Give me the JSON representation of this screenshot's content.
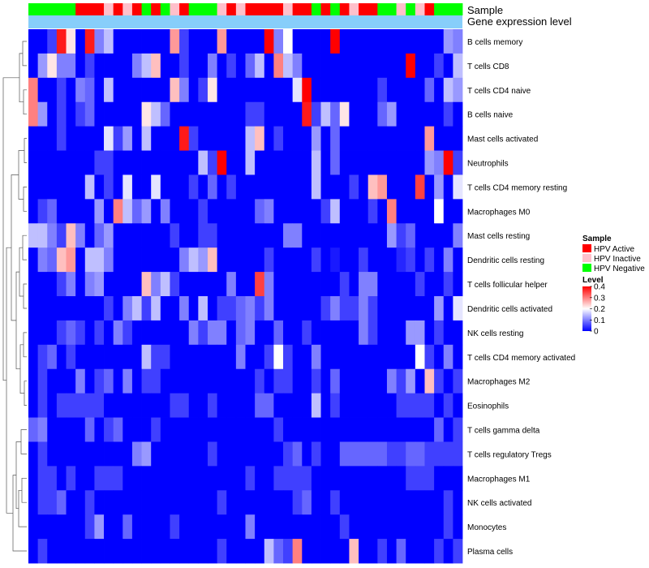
{
  "chart_data": {
    "type": "heatmap",
    "annotation_tracks": [
      "Sample",
      "Gene expression level"
    ],
    "legend": {
      "sample_title": "Sample",
      "sample_entries": [
        {
          "label": "HPV Active",
          "color": "#ff0000"
        },
        {
          "label": "HPV Inactive",
          "color": "#ffc0cb"
        },
        {
          "label": "HPV Negative",
          "color": "#00ff00"
        }
      ],
      "level_title": "Level",
      "level_ticks": [
        "0.4",
        "0.3",
        "0.2",
        "0.1",
        "0"
      ],
      "level_range": [
        0,
        0.4
      ],
      "color_stops": [
        "#0000ff",
        "#ffffff",
        "#ff0000"
      ]
    },
    "gene_expression_color": "#87cefa",
    "samples": [
      "G",
      "G",
      "G",
      "G",
      "G",
      "A",
      "A",
      "A",
      "I",
      "A",
      "I",
      "A",
      "G",
      "A",
      "G",
      "I",
      "A",
      "G",
      "G",
      "G",
      "I",
      "A",
      "I",
      "A",
      "A",
      "A",
      "A",
      "I",
      "A",
      "A",
      "G",
      "A",
      "G",
      "A",
      "I",
      "A",
      "A",
      "G",
      "G",
      "I",
      "G",
      "I",
      "A",
      "G",
      "G",
      "G"
    ],
    "rows": [
      {
        "label": "B cells memory",
        "values": [
          0,
          0,
          0.05,
          0.38,
          0.22,
          0,
          0.38,
          0.1,
          0.15,
          0,
          0,
          0,
          0,
          0,
          0,
          0.28,
          0.05,
          0,
          0,
          0,
          0.28,
          0,
          0,
          0,
          0,
          0.4,
          0.1,
          0.2,
          0,
          0,
          0,
          0,
          0.4,
          0,
          0,
          0,
          0,
          0,
          0,
          0,
          0,
          0,
          0,
          0,
          0.12,
          0.1
        ]
      },
      {
        "label": "T cells CD8",
        "values": [
          0,
          0.12,
          0.22,
          0.1,
          0.1,
          0,
          0.05,
          0,
          0,
          0,
          0,
          0.1,
          0.15,
          0.25,
          0,
          0,
          0.05,
          0,
          0,
          0.1,
          0,
          0.05,
          0,
          0.08,
          0.15,
          0,
          0.3,
          0.15,
          0.1,
          0,
          0,
          0,
          0,
          0,
          0,
          0,
          0,
          0,
          0,
          0,
          0.4,
          0,
          0,
          0.05,
          0,
          0.15
        ]
      },
      {
        "label": "T cells CD4 naive",
        "values": [
          0.3,
          0,
          0,
          0.05,
          0,
          0.1,
          0.08,
          0,
          0.15,
          0,
          0,
          0,
          0,
          0,
          0,
          0.25,
          0.1,
          0,
          0.05,
          0.22,
          0,
          0,
          0,
          0,
          0,
          0,
          0,
          0,
          0.18,
          0.4,
          0,
          0,
          0,
          0,
          0,
          0,
          0,
          0.05,
          0,
          0,
          0,
          0,
          0.08,
          0,
          0.15,
          0.12
        ]
      },
      {
        "label": "B cells naive",
        "values": [
          0.3,
          0.12,
          0,
          0.05,
          0,
          0.05,
          0.08,
          0,
          0,
          0,
          0,
          0,
          0.22,
          0.15,
          0.08,
          0,
          0,
          0,
          0,
          0,
          0,
          0,
          0,
          0.05,
          0.05,
          0,
          0,
          0,
          0,
          0.38,
          0.05,
          0.15,
          0.08,
          0.22,
          0,
          0,
          0,
          0.08,
          0.12,
          0,
          0,
          0,
          0,
          0,
          0.05,
          0
        ]
      },
      {
        "label": "Mast cells activated",
        "values": [
          0,
          0,
          0,
          0.05,
          0,
          0,
          0,
          0,
          0.18,
          0.05,
          0.12,
          0,
          0.15,
          0,
          0,
          0,
          0.38,
          0.05,
          0,
          0,
          0,
          0,
          0,
          0.15,
          0.25,
          0,
          0.05,
          0,
          0,
          0,
          0.12,
          0,
          0.08,
          0,
          0,
          0,
          0,
          0,
          0,
          0,
          0,
          0,
          0.28,
          0,
          0,
          0
        ]
      },
      {
        "label": "Neutrophils",
        "values": [
          0,
          0,
          0,
          0,
          0,
          0,
          0,
          0.05,
          0.05,
          0,
          0,
          0,
          0,
          0,
          0,
          0,
          0,
          0,
          0.15,
          0.05,
          0.4,
          0,
          0,
          0.15,
          0,
          0,
          0,
          0,
          0,
          0,
          0.15,
          0,
          0.08,
          0,
          0,
          0,
          0,
          0,
          0,
          0,
          0,
          0,
          0.12,
          0.1,
          0.4,
          0.05
        ]
      },
      {
        "label": "T cells CD4 memory resting",
        "values": [
          0,
          0,
          0,
          0,
          0,
          0,
          0.15,
          0,
          0.05,
          0,
          0.18,
          0,
          0,
          0.18,
          0,
          0,
          0,
          0.05,
          0,
          0.08,
          0,
          0.05,
          0,
          0,
          0,
          0,
          0,
          0,
          0,
          0,
          0.15,
          0,
          0,
          0,
          0.05,
          0,
          0.25,
          0.28,
          0,
          0,
          0,
          0.35,
          0,
          0.12,
          0,
          0.18
        ]
      },
      {
        "label": "Macrophages M0",
        "values": [
          0,
          0.05,
          0.08,
          0,
          0,
          0,
          0,
          0.12,
          0,
          0.3,
          0.15,
          0.08,
          0.12,
          0,
          0.1,
          0,
          0,
          0,
          0.05,
          0,
          0,
          0,
          0,
          0,
          0.08,
          0.1,
          0,
          0,
          0,
          0,
          0,
          0.05,
          0.15,
          0,
          0,
          0,
          0.05,
          0,
          0.3,
          0,
          0,
          0,
          0,
          0.2,
          0,
          0
        ]
      },
      {
        "label": "Mast cells resting",
        "values": [
          0.15,
          0.15,
          0.1,
          0.05,
          0.25,
          0.1,
          0,
          0.08,
          0.12,
          0,
          0,
          0,
          0,
          0,
          0,
          0.05,
          0,
          0,
          0.05,
          0.05,
          0,
          0,
          0,
          0,
          0,
          0,
          0,
          0.1,
          0.1,
          0,
          0,
          0,
          0,
          0,
          0,
          0,
          0,
          0,
          0.12,
          0.05,
          0.08,
          0,
          0,
          0,
          0,
          0.1
        ]
      },
      {
        "label": "Dendritic cells resting",
        "values": [
          0,
          0.1,
          0.08,
          0.25,
          0.28,
          0,
          0.15,
          0.15,
          0.1,
          0,
          0,
          0,
          0,
          0,
          0,
          0,
          0.1,
          0.15,
          0.12,
          0.25,
          0,
          0,
          0,
          0,
          0,
          0.05,
          0,
          0,
          0,
          0,
          0.05,
          0,
          0.02,
          0,
          0,
          0.05,
          0,
          0,
          0,
          0.03,
          0.05,
          0,
          0.05,
          0,
          0.1,
          0
        ]
      },
      {
        "label": "T cells follicular helper",
        "values": [
          0,
          0,
          0,
          0.05,
          0.1,
          0,
          0.1,
          0.12,
          0,
          0,
          0,
          0,
          0.25,
          0.1,
          0.15,
          0.05,
          0,
          0,
          0,
          0,
          0,
          0.1,
          0,
          0,
          0.35,
          0.1,
          0,
          0,
          0,
          0,
          0,
          0,
          0,
          0.05,
          0,
          0.1,
          0.1,
          0,
          0,
          0,
          0,
          0.05,
          0,
          0,
          0.05,
          0
        ]
      },
      {
        "label": "Dendritic cells activated",
        "values": [
          0,
          0,
          0,
          0,
          0,
          0,
          0,
          0,
          0.05,
          0,
          0.1,
          0.15,
          0.05,
          0.15,
          0,
          0,
          0.1,
          0,
          0.15,
          0,
          0.05,
          0.05,
          0.08,
          0.1,
          0.05,
          0.1,
          0,
          0,
          0,
          0,
          0,
          0.05,
          0.1,
          0.05,
          0.05,
          0.1,
          0.05,
          0,
          0,
          0,
          0,
          0,
          0,
          0.12,
          0,
          0.18
        ]
      },
      {
        "label": "NK cells resting",
        "values": [
          0,
          0,
          0,
          0.05,
          0.08,
          0.05,
          0,
          0.05,
          0,
          0.1,
          0.05,
          0,
          0,
          0,
          0,
          0,
          0,
          0.1,
          0.05,
          0.1,
          0.1,
          0,
          0.08,
          0.1,
          0,
          0,
          0.08,
          0,
          0,
          0.05,
          0,
          0,
          0,
          0,
          0,
          0.1,
          0.05,
          0,
          0,
          0,
          0.12,
          0.12,
          0,
          0.05,
          0,
          0
        ]
      },
      {
        "label": "T cells CD4 memory activated",
        "values": [
          0,
          0.05,
          0.08,
          0,
          0.05,
          0,
          0,
          0,
          0,
          0,
          0,
          0,
          0.15,
          0.05,
          0.05,
          0,
          0,
          0,
          0,
          0,
          0,
          0,
          0.1,
          0,
          0,
          0.05,
          0.2,
          0.05,
          0,
          0,
          0.1,
          0,
          0,
          0,
          0,
          0,
          0,
          0,
          0,
          0,
          0,
          0.2,
          0.05,
          0,
          0.1,
          0
        ]
      },
      {
        "label": "Macrophages M2",
        "values": [
          0,
          0.05,
          0,
          0,
          0,
          0.1,
          0,
          0.05,
          0.08,
          0,
          0.1,
          0,
          0.05,
          0.05,
          0,
          0,
          0,
          0,
          0,
          0,
          0,
          0,
          0,
          0,
          0.05,
          0,
          0.05,
          0.05,
          0,
          0,
          0.05,
          0,
          0.08,
          0,
          0,
          0,
          0,
          0,
          0.1,
          0.05,
          0.12,
          0,
          0.25,
          0.05,
          0,
          0.05
        ]
      },
      {
        "label": "Eosinophils",
        "values": [
          0,
          0.05,
          0,
          0.05,
          0.05,
          0.05,
          0.05,
          0.05,
          0,
          0,
          0,
          0,
          0,
          0,
          0,
          0.05,
          0.05,
          0,
          0,
          0.05,
          0,
          0,
          0,
          0,
          0.08,
          0.08,
          0,
          0,
          0,
          0,
          0.15,
          0,
          0.05,
          0,
          0,
          0,
          0,
          0,
          0,
          0.05,
          0.05,
          0.05,
          0.05,
          0,
          0.05,
          0
        ]
      },
      {
        "label": "T cells gamma delta",
        "values": [
          0.08,
          0.1,
          0,
          0,
          0,
          0,
          0.08,
          0,
          0.05,
          0.08,
          0,
          0,
          0,
          0.05,
          0,
          0,
          0,
          0,
          0,
          0,
          0,
          0,
          0,
          0,
          0,
          0,
          0.05,
          0,
          0,
          0,
          0,
          0,
          0,
          0,
          0,
          0,
          0,
          0,
          0,
          0,
          0,
          0,
          0,
          0.08,
          0,
          0.05
        ]
      },
      {
        "label": "T cells regulatory  Tregs",
        "values": [
          0,
          0.05,
          0,
          0,
          0,
          0,
          0,
          0,
          0,
          0,
          0,
          0.1,
          0.12,
          0,
          0,
          0,
          0,
          0,
          0,
          0.05,
          0,
          0,
          0,
          0,
          0,
          0,
          0,
          0.05,
          0.08,
          0,
          0.05,
          0,
          0,
          0.08,
          0.08,
          0.08,
          0.08,
          0.08,
          0.05,
          0.05,
          0.08,
          0.08,
          0.05,
          0.05,
          0.05,
          0.05
        ]
      },
      {
        "label": "Macrophages M1",
        "values": [
          0,
          0.05,
          0.05,
          0,
          0.05,
          0,
          0,
          0.05,
          0.05,
          0.05,
          0,
          0,
          0,
          0,
          0,
          0,
          0,
          0,
          0,
          0,
          0,
          0,
          0,
          0.05,
          0,
          0,
          0.05,
          0.05,
          0.05,
          0.05,
          0,
          0,
          0,
          0,
          0,
          0,
          0,
          0,
          0,
          0,
          0.05,
          0.05,
          0.05,
          0,
          0,
          0
        ]
      },
      {
        "label": "NK cells activated",
        "values": [
          0,
          0.05,
          0.05,
          0.08,
          0,
          0,
          0.05,
          0,
          0,
          0,
          0,
          0,
          0,
          0,
          0,
          0,
          0,
          0,
          0,
          0,
          0.05,
          0,
          0,
          0,
          0,
          0,
          0,
          0,
          0.05,
          0.08,
          0,
          0,
          0.05,
          0,
          0,
          0,
          0,
          0,
          0,
          0,
          0,
          0,
          0,
          0,
          0.05,
          0
        ]
      },
      {
        "label": "Monocytes",
        "values": [
          0,
          0,
          0,
          0,
          0,
          0,
          0.05,
          0.12,
          0,
          0,
          0.08,
          0,
          0,
          0,
          0,
          0.05,
          0,
          0,
          0,
          0,
          0,
          0,
          0,
          0.1,
          0,
          0,
          0,
          0,
          0,
          0,
          0,
          0,
          0,
          0.05,
          0,
          0,
          0,
          0,
          0,
          0,
          0,
          0,
          0,
          0,
          0.05,
          0
        ]
      },
      {
        "label": "Plasma cells",
        "values": [
          0,
          0.05,
          0,
          0,
          0,
          0,
          0,
          0,
          0,
          0,
          0,
          0,
          0,
          0,
          0,
          0,
          0,
          0,
          0,
          0,
          0.05,
          0,
          0,
          0,
          0,
          0.15,
          0.08,
          0.05,
          0.3,
          0,
          0,
          0,
          0,
          0,
          0.25,
          0,
          0,
          0.05,
          0,
          0.08,
          0,
          0,
          0,
          0.05,
          0,
          0.05
        ]
      }
    ]
  }
}
